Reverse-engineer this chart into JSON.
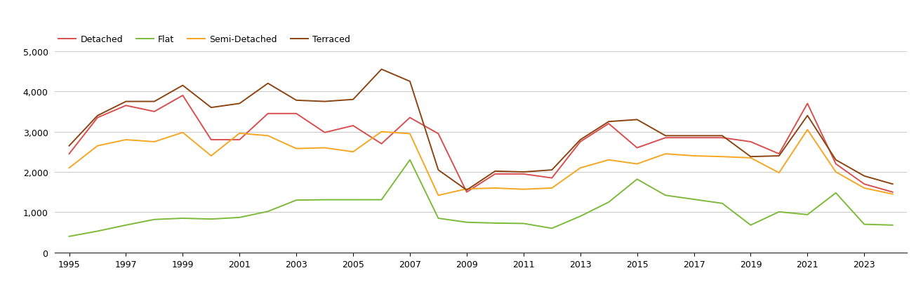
{
  "years": [
    1995,
    1996,
    1997,
    1998,
    1999,
    2000,
    2001,
    2002,
    2003,
    2004,
    2005,
    2006,
    2007,
    2008,
    2009,
    2010,
    2011,
    2012,
    2013,
    2014,
    2015,
    2016,
    2017,
    2018,
    2019,
    2020,
    2021,
    2022,
    2023,
    2024
  ],
  "detached": [
    2450,
    3350,
    3650,
    3500,
    3900,
    2800,
    2800,
    3450,
    3450,
    2980,
    3150,
    2700,
    3350,
    2950,
    1500,
    1950,
    1950,
    1850,
    2750,
    3200,
    2600,
    2850,
    2850,
    2850,
    2750,
    2450,
    3700,
    2200,
    1700,
    1500
  ],
  "flat": [
    400,
    530,
    680,
    820,
    850,
    830,
    870,
    1020,
    1300,
    1310,
    1310,
    1310,
    2300,
    850,
    750,
    730,
    720,
    600,
    900,
    1250,
    1820,
    1420,
    1320,
    1220,
    680,
    1010,
    940,
    1480,
    700,
    680
  ],
  "semi_detached": [
    2100,
    2650,
    2800,
    2750,
    2980,
    2400,
    2960,
    2900,
    2580,
    2600,
    2500,
    3000,
    2950,
    1420,
    1580,
    1600,
    1570,
    1600,
    2100,
    2300,
    2200,
    2450,
    2400,
    2380,
    2350,
    1980,
    3050,
    2000,
    1600,
    1450
  ],
  "terraced": [
    2650,
    3400,
    3750,
    3750,
    4150,
    3600,
    3700,
    4200,
    3780,
    3750,
    3800,
    4550,
    4250,
    2050,
    1550,
    2020,
    2000,
    2050,
    2800,
    3250,
    3300,
    2900,
    2900,
    2900,
    2380,
    2400,
    3400,
    2300,
    1900,
    1700
  ],
  "series_colors": {
    "Detached": "#d94f4f",
    "Flat": "#7cba3a",
    "Semi-Detached": "#f5a623",
    "Terraced": "#8b4513"
  },
  "ylim": [
    0,
    5000
  ],
  "yticks": [
    0,
    1000,
    2000,
    3000,
    4000,
    5000
  ],
  "xtick_years": [
    1995,
    1997,
    1999,
    2001,
    2003,
    2005,
    2007,
    2009,
    2011,
    2013,
    2015,
    2017,
    2019,
    2021,
    2023
  ],
  "legend_labels": [
    "Detached",
    "Flat",
    "Semi-Detached",
    "Terraced"
  ],
  "background_color": "#ffffff",
  "grid_color": "#cccccc"
}
